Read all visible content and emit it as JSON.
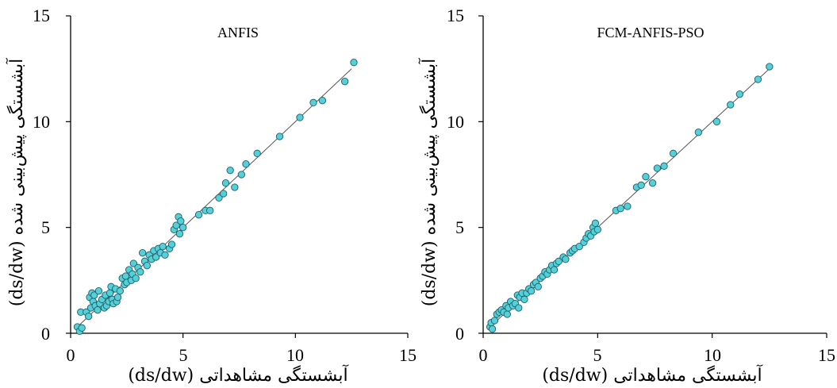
{
  "chart_data": [
    {
      "type": "scatter",
      "title": "ANFIS",
      "xlabel": "آبشستگی مشاهداتی (ds/dw)",
      "ylabel": "آبشستگی پیش‌بینی شده (ds/dw)",
      "xlim": [
        0,
        15
      ],
      "ylim": [
        0,
        15
      ],
      "xticks": [
        "0",
        "5",
        "10",
        "15"
      ],
      "yticks": [
        "0",
        "5",
        "10",
        "15"
      ],
      "line": {
        "x": [
          0.3,
          12.5
        ],
        "y": [
          0.3,
          12.5
        ]
      },
      "series": [
        {
          "x": [
            0.3,
            0.4,
            0.45,
            0.5,
            0.7,
            0.8,
            0.85,
            0.9,
            0.95,
            1.0,
            1.05,
            1.1,
            1.2,
            1.25,
            1.3,
            1.4,
            1.5,
            1.55,
            1.6,
            1.7,
            1.75,
            1.8,
            1.85,
            1.9,
            2.0,
            2.05,
            2.1,
            2.2,
            2.3,
            2.4,
            2.45,
            2.5,
            2.6,
            2.7,
            2.75,
            2.8,
            2.9,
            3.0,
            3.1,
            3.2,
            3.3,
            3.4,
            3.5,
            3.6,
            3.7,
            3.8,
            3.9,
            4.0,
            4.1,
            4.2,
            4.4,
            4.5,
            4.6,
            4.7,
            4.8,
            4.85,
            4.9,
            5.0,
            5.7,
            6.0,
            6.2,
            6.6,
            6.8,
            6.9,
            7.1,
            7.3,
            7.6,
            7.8,
            8.3,
            9.3,
            10.2,
            10.8,
            11.2,
            12.2,
            12.6
          ],
          "y": [
            0.3,
            0.1,
            1.0,
            0.25,
            1.0,
            0.8,
            1.7,
            1.2,
            1.9,
            1.5,
            1.8,
            1.3,
            1.1,
            2.0,
            1.4,
            1.6,
            1.2,
            1.8,
            1.3,
            1.5,
            1.9,
            2.2,
            1.6,
            1.4,
            2.1,
            1.5,
            1.7,
            2.0,
            2.6,
            2.3,
            2.7,
            2.4,
            3.0,
            2.5,
            2.8,
            3.3,
            2.6,
            3.1,
            2.9,
            3.8,
            3.4,
            3.2,
            3.7,
            3.5,
            3.9,
            3.6,
            4.0,
            3.8,
            4.1,
            3.7,
            4.0,
            4.2,
            4.9,
            5.1,
            5.5,
            4.7,
            5.3,
            5.0,
            5.6,
            5.8,
            5.8,
            6.4,
            6.6,
            7.1,
            7.7,
            6.9,
            7.5,
            8.0,
            8.5,
            9.3,
            10.2,
            10.9,
            11.0,
            11.9,
            12.8
          ]
        }
      ]
    },
    {
      "type": "scatter",
      "title": "FCM-ANFIS-PSO",
      "xlabel": "آبشستگی مشاهداتی (ds/dw)",
      "ylabel": "آبشستگی پیش‌بینی شده (ds/dw)",
      "xlim": [
        0,
        15
      ],
      "ylim": [
        0,
        15
      ],
      "xticks": [
        "0",
        "5",
        "10",
        "15"
      ],
      "yticks": [
        "0",
        "5",
        "10",
        "15"
      ],
      "line": {
        "x": [
          0.3,
          12.5
        ],
        "y": [
          0.3,
          12.5
        ]
      },
      "series": [
        {
          "x": [
            0.3,
            0.35,
            0.4,
            0.5,
            0.6,
            0.7,
            0.8,
            0.9,
            1.0,
            1.05,
            1.1,
            1.2,
            1.3,
            1.4,
            1.5,
            1.55,
            1.6,
            1.7,
            1.8,
            1.9,
            2.0,
            2.1,
            2.2,
            2.3,
            2.4,
            2.5,
            2.6,
            2.7,
            2.8,
            2.9,
            3.0,
            3.1,
            3.2,
            3.3,
            3.5,
            3.6,
            3.8,
            3.9,
            4.0,
            4.2,
            4.4,
            4.5,
            4.6,
            4.7,
            4.8,
            4.85,
            4.9,
            5.0,
            5.8,
            6.0,
            6.3,
            6.7,
            6.9,
            7.1,
            7.4,
            7.6,
            7.9,
            8.3,
            9.4,
            10.2,
            10.8,
            11.2,
            12.0,
            12.5
          ],
          "y": [
            0.3,
            0.5,
            0.2,
            0.6,
            0.9,
            1.0,
            1.1,
            1.0,
            1.3,
            0.9,
            1.2,
            1.5,
            1.3,
            1.4,
            1.8,
            1.2,
            1.7,
            1.9,
            1.6,
            1.9,
            2.1,
            2.0,
            2.3,
            2.4,
            2.2,
            2.6,
            2.7,
            2.9,
            2.8,
            3.0,
            3.2,
            3.0,
            3.3,
            3.4,
            3.6,
            3.5,
            3.8,
            3.9,
            4.0,
            4.1,
            4.3,
            4.5,
            4.7,
            4.6,
            5.0,
            4.8,
            5.2,
            4.9,
            5.8,
            5.9,
            6.0,
            6.9,
            7.0,
            7.4,
            7.1,
            7.8,
            7.9,
            8.5,
            9.5,
            10.0,
            10.8,
            11.3,
            12.0,
            12.6
          ]
        }
      ]
    }
  ]
}
